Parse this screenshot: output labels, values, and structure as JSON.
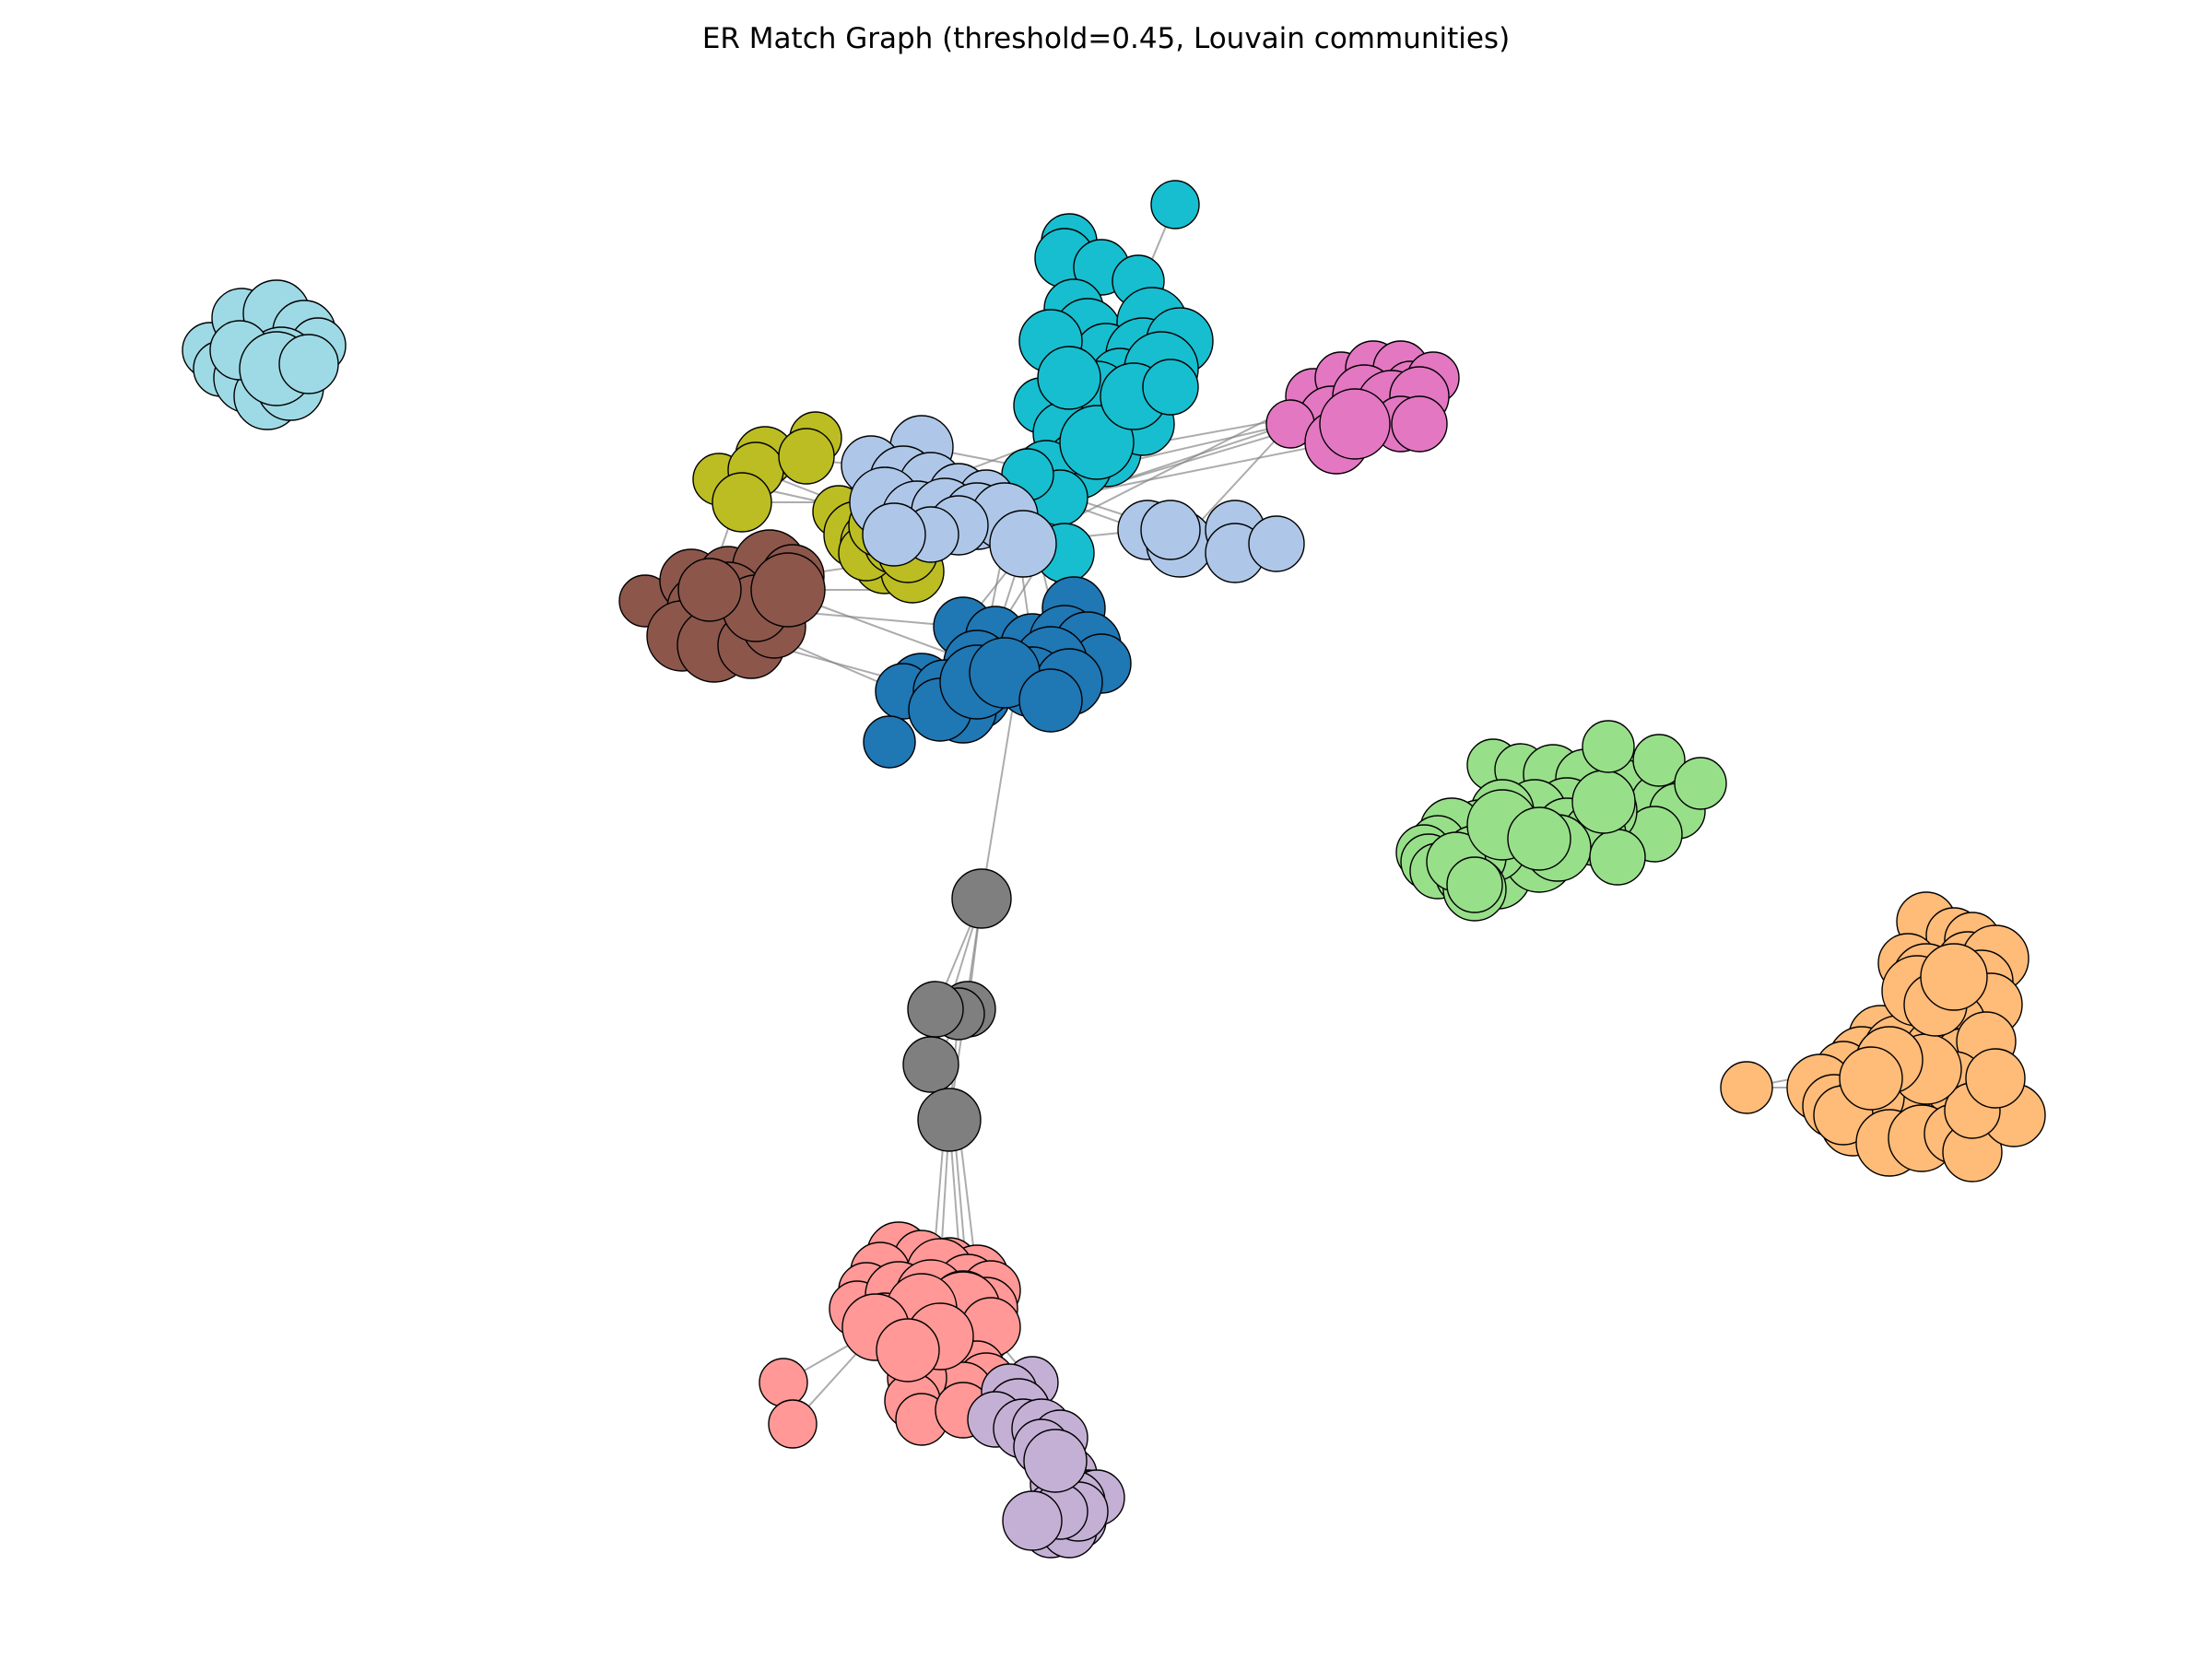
{
  "title": "ER Match Graph (threshold=0.45, Louvain communities)",
  "communities": [
    {
      "name": "cyan-top",
      "color": "#17becf"
    },
    {
      "name": "pink",
      "color": "#e377c2"
    },
    {
      "name": "olive",
      "color": "#bcbd22"
    },
    {
      "name": "light-blue",
      "color": "#aec7e8"
    },
    {
      "name": "brown",
      "color": "#8c564b"
    },
    {
      "name": "blue",
      "color": "#1f77b4"
    },
    {
      "name": "light-cyan",
      "color": "#9edae5"
    },
    {
      "name": "light-green",
      "color": "#98df8a"
    },
    {
      "name": "light-orange",
      "color": "#ffbb78"
    },
    {
      "name": "gray",
      "color": "#7f7f7f"
    },
    {
      "name": "salmon",
      "color": "#ff9896"
    },
    {
      "name": "lavender",
      "color": "#c5b0d5"
    }
  ]
}
